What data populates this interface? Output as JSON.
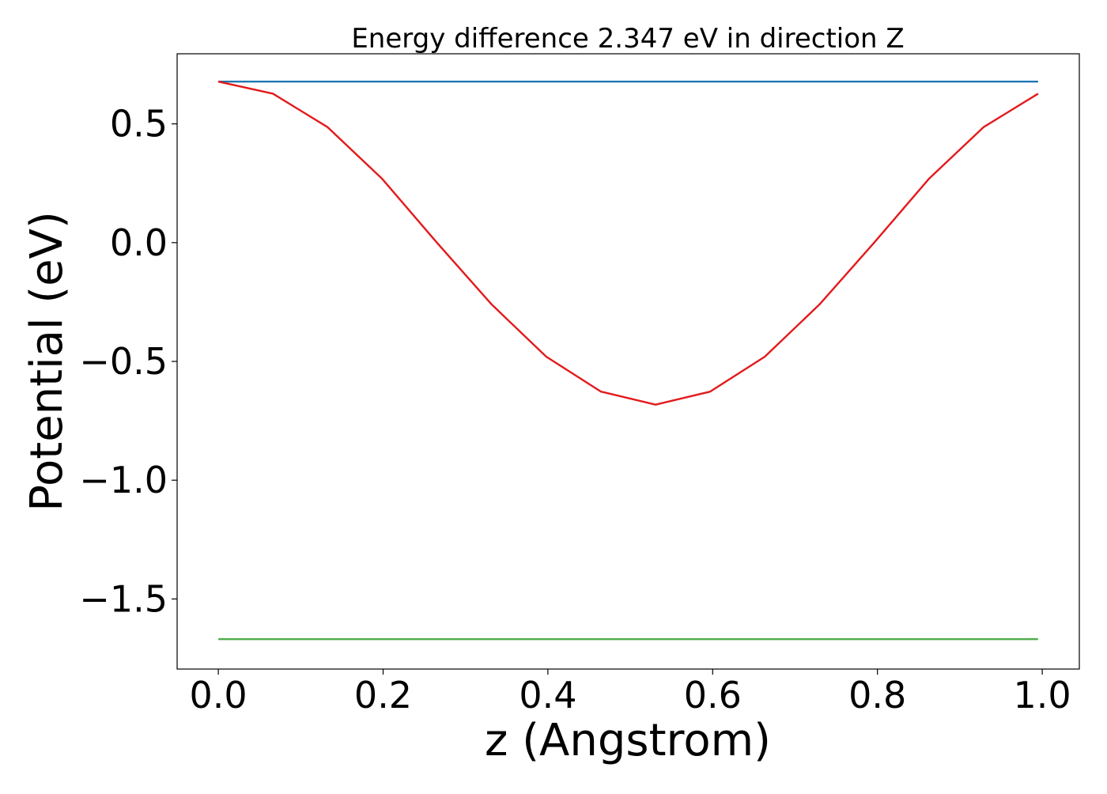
{
  "chart_data": {
    "type": "line",
    "title": "Energy difference 2.347 eV in direction Z",
    "xlabel": "z (Angstrom)",
    "ylabel": "Potential (eV)",
    "xlim": [
      -0.05,
      1.045
    ],
    "ylim": [
      -1.795,
      0.795
    ],
    "xticks": [
      0.0,
      0.2,
      0.4,
      0.6,
      0.8,
      1.0
    ],
    "xtick_labels": [
      "0.0",
      "0.2",
      "0.4",
      "0.6",
      "0.8",
      "1.0"
    ],
    "yticks": [
      0.5,
      0.0,
      -0.5,
      -1.0,
      -1.5
    ],
    "ytick_labels": [
      "0.5",
      "0.0",
      "−0.5",
      "−1.0",
      "−1.5"
    ],
    "grid": false,
    "series": [
      {
        "color": "#1f77b4",
        "x": [
          0.0,
          0.995
        ],
        "y": [
          0.678,
          0.678
        ]
      },
      {
        "color": "#e31a1c",
        "x": [
          0.0,
          0.0663,
          0.1327,
          0.199,
          0.2653,
          0.3317,
          0.398,
          0.4643,
          0.5307,
          0.597,
          0.6633,
          0.7297,
          0.796,
          0.8623,
          0.9287,
          0.995
        ],
        "y": [
          0.678,
          0.627,
          0.486,
          0.268,
          0.0,
          -0.26,
          -0.48,
          -0.627,
          -0.682,
          -0.627,
          -0.48,
          -0.26,
          0.0,
          0.268,
          0.486,
          0.627
        ]
      },
      {
        "color": "#4daf4a",
        "x": [
          0.0,
          0.995
        ],
        "y": [
          -1.669,
          -1.669
        ]
      }
    ]
  }
}
